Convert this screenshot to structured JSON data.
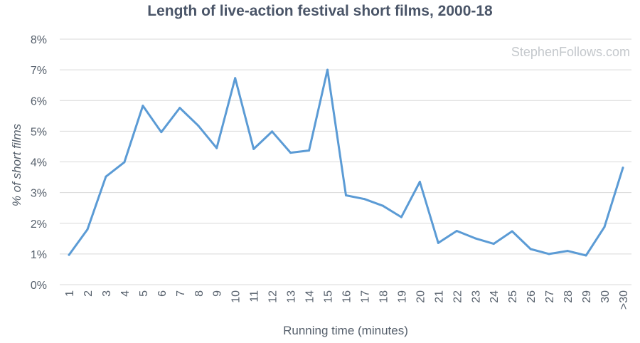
{
  "chart_data": {
    "type": "line",
    "title": "Length of live-action festival short films, 2000-18",
    "xlabel": "Running time (minutes)",
    "ylabel": "% of short films",
    "watermark": "StephenFollows.com",
    "categories": [
      "1",
      "2",
      "3",
      "4",
      "5",
      "6",
      "7",
      "8",
      "9",
      "10",
      "11",
      "12",
      "13",
      "14",
      "15",
      "16",
      "17",
      "18",
      "19",
      "20",
      "21",
      "22",
      "23",
      "24",
      "25",
      "26",
      "27",
      "28",
      "29",
      "30",
      ">30"
    ],
    "y_ticks": [
      "0%",
      "1%",
      "2%",
      "3%",
      "4%",
      "5%",
      "6%",
      "7%",
      "8%"
    ],
    "ylim": [
      0,
      8
    ],
    "grid": true,
    "series": [
      {
        "values": [
          0.97,
          1.8,
          3.52,
          3.99,
          5.83,
          4.97,
          5.76,
          5.18,
          4.45,
          6.73,
          4.42,
          4.99,
          4.3,
          4.37,
          7.0,
          2.91,
          2.79,
          2.57,
          2.2,
          3.35,
          1.36,
          1.75,
          1.51,
          1.33,
          1.74,
          1.16,
          1.0,
          1.1,
          0.95,
          1.88,
          3.81
        ],
        "color": "#5b9bd5"
      }
    ]
  }
}
